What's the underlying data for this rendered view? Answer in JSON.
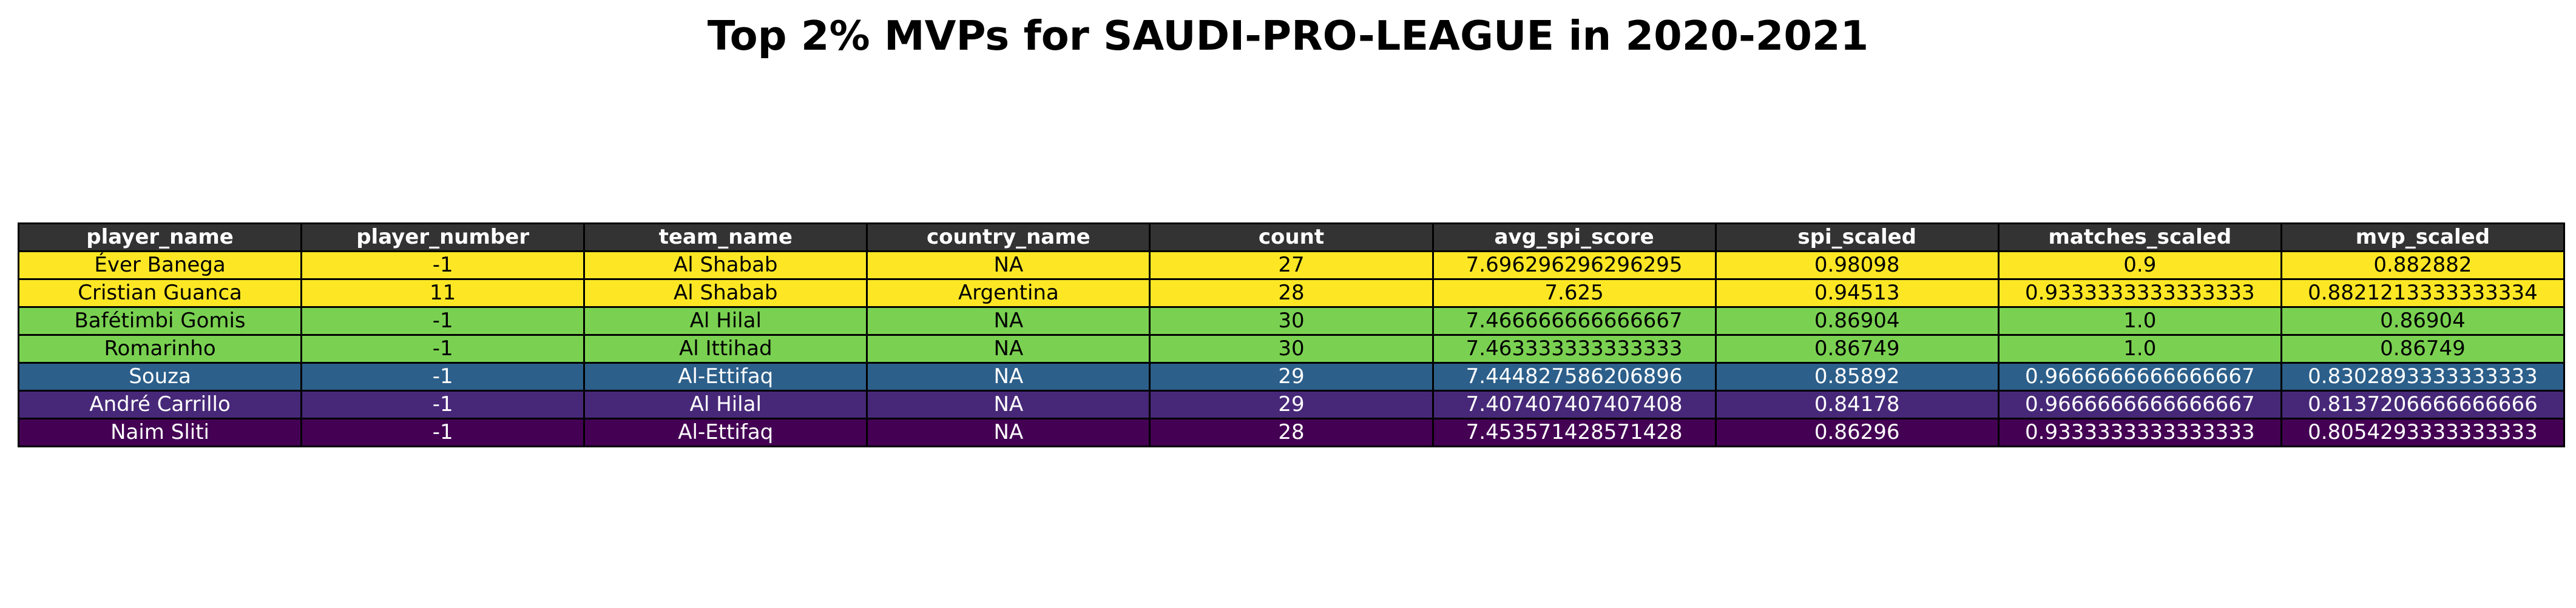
{
  "chart_data": {
    "type": "table",
    "title": "Top 2% MVPs for SAUDI-PRO-LEAGUE in 2020-2021",
    "header_color": "#333333",
    "columns": [
      "player_name",
      "player_number",
      "team_name",
      "country_name",
      "count",
      "avg_spi_score",
      "spi_scaled",
      "matches_scaled",
      "mvp_scaled"
    ],
    "rows": [
      {
        "cells": [
          "Éver Banega",
          "-1",
          "Al Shabab",
          "NA",
          "27",
          "7.696296296296295",
          "0.98098",
          "0.9",
          "0.882882"
        ],
        "bg": "#fde725",
        "fg": "#000000"
      },
      {
        "cells": [
          "Cristian Guanca",
          "11",
          "Al Shabab",
          "Argentina",
          "28",
          "7.625",
          "0.94513",
          "0.9333333333333333",
          "0.8821213333333334"
        ],
        "bg": "#fde725",
        "fg": "#000000"
      },
      {
        "cells": [
          "Bafétimbi Gomis",
          "-1",
          "Al Hilal",
          "NA",
          "30",
          "7.466666666666667",
          "0.86904",
          "1.0",
          "0.86904"
        ],
        "bg": "#7ad151",
        "fg": "#000000"
      },
      {
        "cells": [
          "Romarinho",
          "-1",
          "Al Ittihad",
          "NA",
          "30",
          "7.463333333333333",
          "0.86749",
          "1.0",
          "0.86749"
        ],
        "bg": "#7ad151",
        "fg": "#000000"
      },
      {
        "cells": [
          "Souza",
          "-1",
          "Al-Ettifaq",
          "NA",
          "29",
          "7.444827586206896",
          "0.85892",
          "0.9666666666666667",
          "0.8302893333333333"
        ],
        "bg": "#2c5f8a",
        "fg": "#ffffff"
      },
      {
        "cells": [
          "André Carrillo",
          "-1",
          "Al Hilal",
          "NA",
          "29",
          "7.407407407407408",
          "0.84178",
          "0.9666666666666667",
          "0.8137206666666666"
        ],
        "bg": "#472878",
        "fg": "#ffffff"
      },
      {
        "cells": [
          "Naim Sliti",
          "-1",
          "Al-Ettifaq",
          "NA",
          "28",
          "7.453571428571428",
          "0.86296",
          "0.9333333333333333",
          "0.8054293333333333"
        ],
        "bg": "#440154",
        "fg": "#ffffff"
      }
    ]
  }
}
